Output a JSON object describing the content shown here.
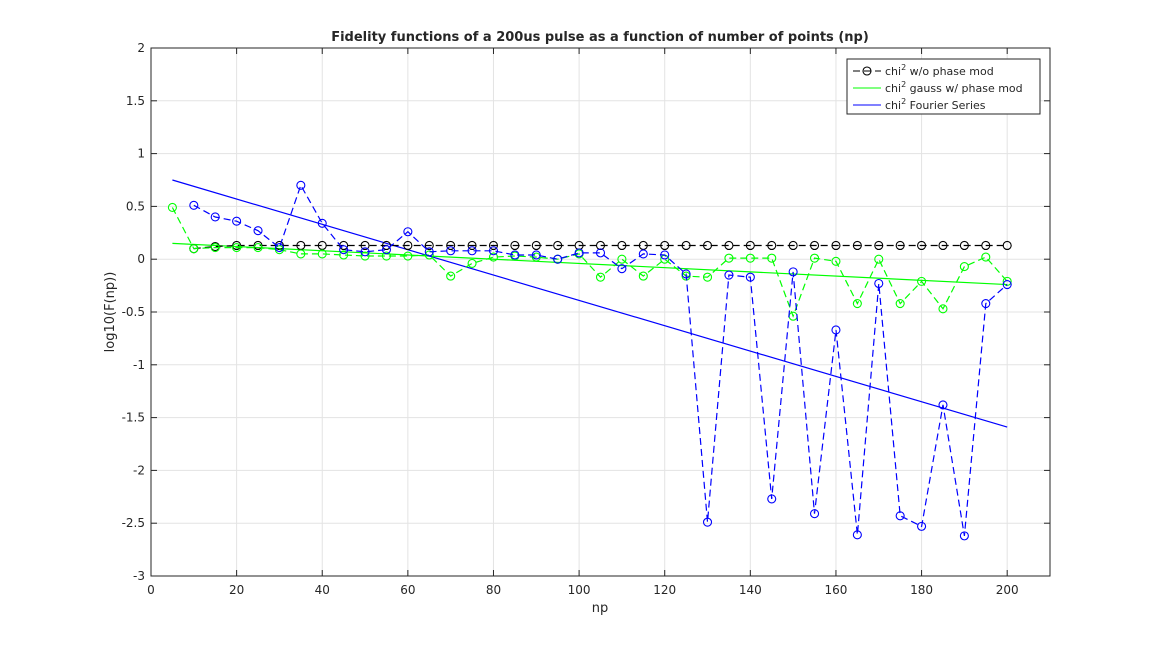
{
  "chart_data": {
    "type": "line",
    "title": "Fidelity functions of a 200us pulse as a function of number of points (np)",
    "xlabel": "np",
    "ylabel": "log10(F(np))",
    "xlim": [
      0,
      210
    ],
    "ylim": [
      -3,
      2
    ],
    "xticks": [
      0,
      20,
      40,
      60,
      80,
      100,
      120,
      140,
      160,
      180,
      200
    ],
    "yticks": [
      -3,
      -2.5,
      -2,
      -1.5,
      -1,
      -0.5,
      0,
      0.5,
      1,
      1.5,
      2
    ],
    "xtick_labels": [
      "0",
      "20",
      "40",
      "60",
      "80",
      "100",
      "120",
      "140",
      "160",
      "180",
      "200"
    ],
    "ytick_labels": [
      "-3",
      "-2.5",
      "-2",
      "-1.5",
      "-1",
      "-0.5",
      "0",
      "0.5",
      "1",
      "1.5",
      "2"
    ],
    "grid": true,
    "legend_position": "top-right",
    "x": [
      5,
      10,
      15,
      20,
      25,
      30,
      35,
      40,
      45,
      50,
      55,
      60,
      65,
      70,
      75,
      80,
      85,
      90,
      95,
      100,
      105,
      110,
      115,
      120,
      125,
      130,
      135,
      140,
      145,
      150,
      155,
      160,
      165,
      170,
      175,
      180,
      185,
      190,
      195,
      200
    ],
    "series": [
      {
        "name": "chi",
        "legend_suffix": " w/o phase mod",
        "color": "#000000",
        "style": "dashed-marker",
        "values": [
          null,
          0.1,
          0.12,
          0.13,
          0.13,
          0.13,
          0.13,
          0.13,
          0.13,
          0.13,
          0.13,
          0.13,
          0.13,
          0.13,
          0.13,
          0.13,
          0.13,
          0.13,
          0.13,
          0.13,
          0.13,
          0.13,
          0.13,
          0.13,
          0.13,
          0.13,
          0.13,
          0.13,
          0.13,
          0.13,
          0.13,
          0.13,
          0.13,
          0.13,
          0.13,
          0.13,
          0.13,
          0.13,
          0.13,
          0.13
        ]
      },
      {
        "name": "chi",
        "legend_suffix": " gauss w/ phase mod",
        "color": "#00ff00",
        "style": "dashed-marker",
        "values": [
          0.49,
          0.1,
          0.11,
          0.11,
          0.11,
          0.09,
          0.05,
          0.05,
          0.04,
          0.03,
          0.03,
          0.03,
          0.04,
          -0.16,
          -0.04,
          0.02,
          0.03,
          0.02,
          0.0,
          0.05,
          -0.17,
          0.0,
          -0.16,
          0.0,
          -0.16,
          -0.17,
          0.01,
          0.01,
          0.01,
          -0.54,
          0.01,
          -0.02,
          -0.42,
          0.0,
          -0.42,
          -0.21,
          -0.47,
          -0.07,
          0.02,
          -0.21
        ]
      },
      {
        "name": "chi",
        "legend_suffix": " Fourier Series",
        "color": "#0000ff",
        "style": "dashed-marker",
        "values": [
          null,
          0.51,
          0.4,
          0.36,
          0.27,
          0.11,
          0.7,
          0.34,
          0.09,
          0.07,
          0.09,
          0.26,
          0.07,
          0.08,
          0.08,
          0.08,
          0.04,
          0.04,
          0.0,
          0.06,
          0.06,
          -0.09,
          0.05,
          0.04,
          -0.14,
          -2.49,
          -0.15,
          -0.17,
          -2.27,
          -0.12,
          -2.41,
          -0.67,
          -2.61,
          -0.23,
          -2.43,
          -2.53,
          -1.38,
          -2.62,
          -0.42,
          -0.24
        ]
      }
    ],
    "fit_lines": [
      {
        "name": "green-fit",
        "color": "#00ff00",
        "x": [
          5,
          200
        ],
        "y": [
          0.15,
          -0.24
        ]
      },
      {
        "name": "blue-fit",
        "color": "#0000ff",
        "x": [
          5,
          200
        ],
        "y": [
          0.75,
          -1.59
        ]
      }
    ],
    "legend": [
      {
        "prefix": "chi",
        "sup": "2",
        "suffix": " w/o phase mod",
        "color": "#000000",
        "style": "dashed-marker"
      },
      {
        "prefix": "chi",
        "sup": "2",
        "suffix": " gauss w/ phase mod",
        "color": "#00ff00",
        "style": "solid"
      },
      {
        "prefix": "chi",
        "sup": "2",
        "suffix": " Fourier Series",
        "color": "#0000ff",
        "style": "solid"
      }
    ]
  }
}
